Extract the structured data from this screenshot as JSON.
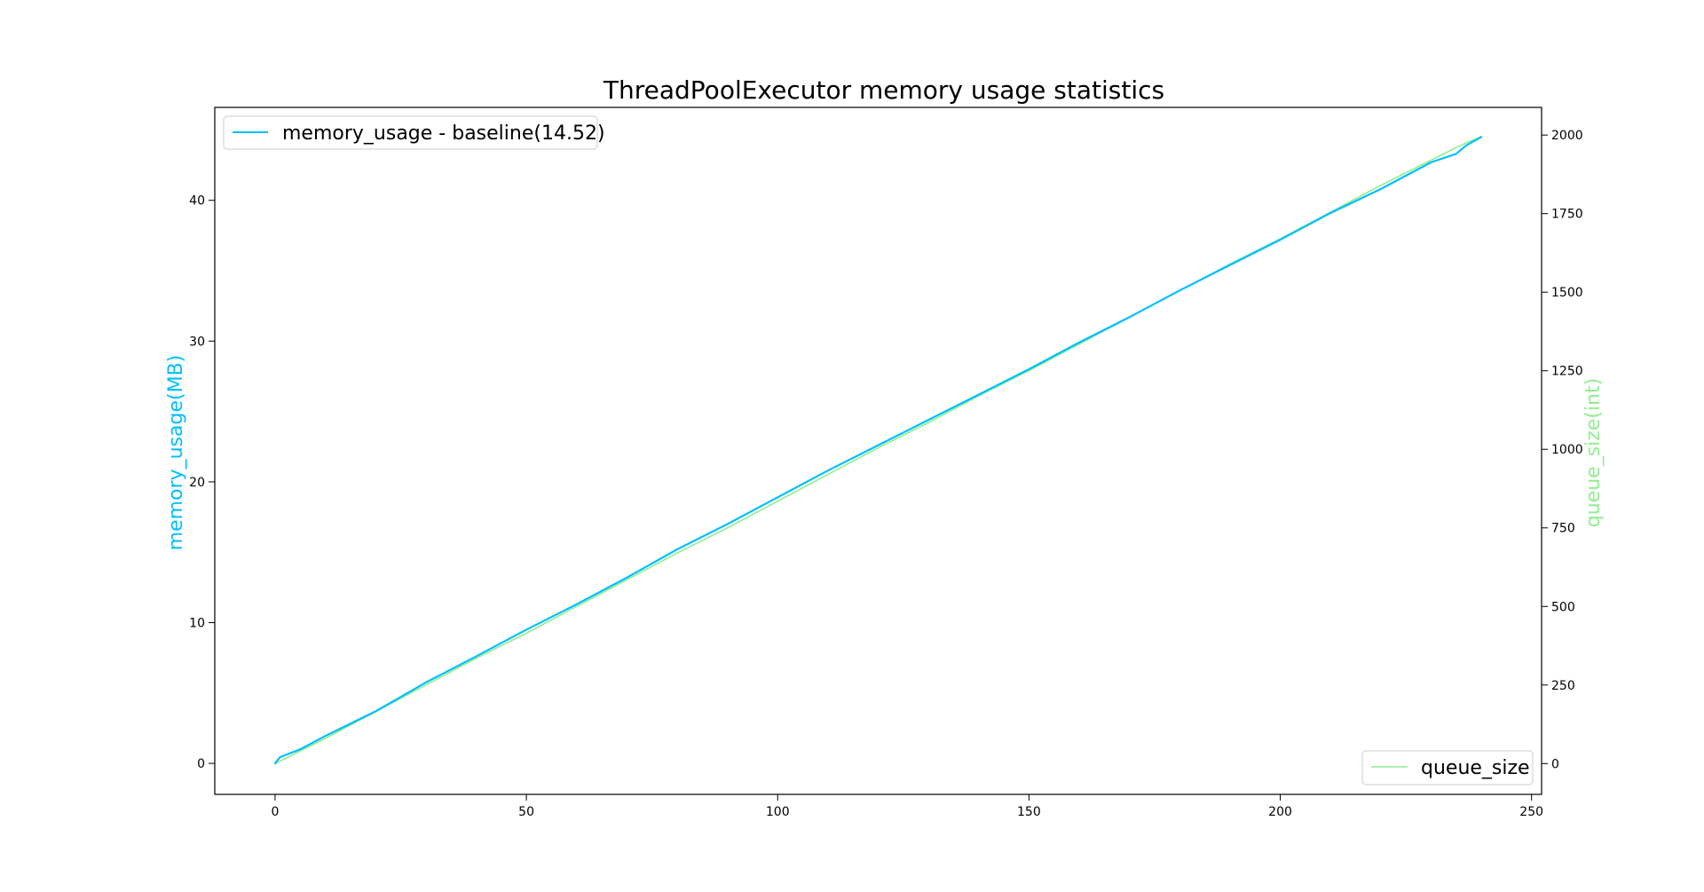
{
  "chart_data": {
    "type": "line",
    "title": "ThreadPoolExecutor memory usage statistics",
    "xlabel": "",
    "xlim": [
      -12,
      252
    ],
    "xticks": [
      0,
      50,
      100,
      150,
      200,
      250
    ],
    "left_axis": {
      "label": "memory_usage(MB)",
      "label_color": "#00bfff",
      "ylim": [
        -2.2,
        46.6
      ],
      "ticks": [
        0,
        10,
        20,
        30,
        40
      ]
    },
    "right_axis": {
      "label": "queue_size(int)",
      "label_color": "#90ee90",
      "ylim": [
        -98,
        2088
      ],
      "ticks": [
        0,
        250,
        500,
        750,
        1000,
        1250,
        1500,
        1750,
        2000
      ]
    },
    "grid": false,
    "series": [
      {
        "name": "memory_usage - baseline(14.52)",
        "axis": "left",
        "color": "#00bfff",
        "legend_position": "upper-left",
        "points": [
          [
            0,
            0
          ],
          [
            1,
            0.45
          ],
          [
            5,
            1.0
          ],
          [
            10,
            1.95
          ],
          [
            20,
            3.7
          ],
          [
            30,
            5.75
          ],
          [
            40,
            7.6
          ],
          [
            50,
            9.5
          ],
          [
            60,
            11.3
          ],
          [
            70,
            13.2
          ],
          [
            80,
            15.2
          ],
          [
            90,
            17.0
          ],
          [
            100,
            18.9
          ],
          [
            110,
            20.8
          ],
          [
            120,
            22.6
          ],
          [
            130,
            24.4
          ],
          [
            140,
            26.2
          ],
          [
            150,
            28.0
          ],
          [
            160,
            29.9
          ],
          [
            170,
            31.7
          ],
          [
            180,
            33.6
          ],
          [
            190,
            35.4
          ],
          [
            200,
            37.2
          ],
          [
            210,
            39.1
          ],
          [
            220,
            40.8
          ],
          [
            230,
            42.7
          ],
          [
            235,
            43.3
          ],
          [
            237,
            43.9
          ],
          [
            240,
            44.5
          ]
        ]
      },
      {
        "name": "queue_size",
        "axis": "right",
        "color": "#90ee90",
        "legend_position": "lower-right",
        "points": [
          [
            0,
            0
          ],
          [
            10,
            80
          ],
          [
            20,
            165
          ],
          [
            30,
            250
          ],
          [
            40,
            335
          ],
          [
            50,
            415
          ],
          [
            60,
            500
          ],
          [
            70,
            585
          ],
          [
            80,
            670
          ],
          [
            90,
            750
          ],
          [
            100,
            835
          ],
          [
            110,
            920
          ],
          [
            120,
            1005
          ],
          [
            130,
            1085
          ],
          [
            140,
            1170
          ],
          [
            150,
            1250
          ],
          [
            160,
            1335
          ],
          [
            170,
            1420
          ],
          [
            180,
            1505
          ],
          [
            190,
            1590
          ],
          [
            200,
            1670
          ],
          [
            210,
            1755
          ],
          [
            220,
            1840
          ],
          [
            230,
            1920
          ],
          [
            235,
            1960
          ],
          [
            237,
            1975
          ],
          [
            240,
            1995
          ]
        ]
      }
    ],
    "legends": [
      {
        "text": "memory_usage - baseline(14.52)",
        "color": "#00bfff",
        "position": "upper-left"
      },
      {
        "text": "queue_size",
        "color": "#90ee90",
        "position": "lower-right"
      }
    ]
  }
}
